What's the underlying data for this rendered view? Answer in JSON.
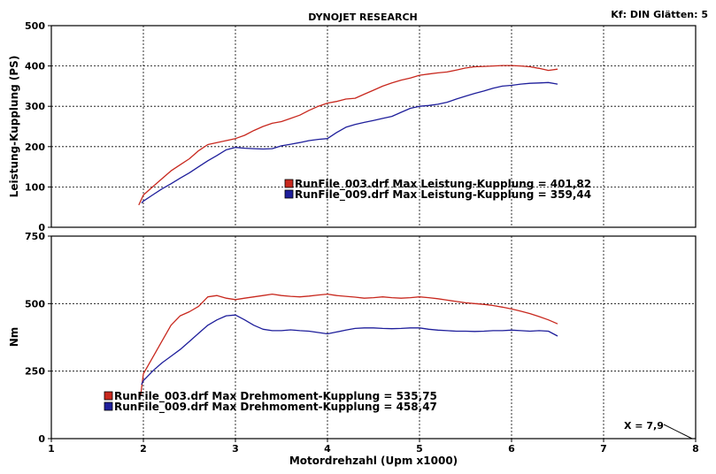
{
  "header": {
    "title": "DYNOJET RESEARCH",
    "correction": "Kf: DIN  Glätten: 5"
  },
  "cursor_readout": "X = 7,9",
  "colors": {
    "run_003": "#c8281e",
    "run_009": "#1e1e9b",
    "panel_bg": "#ffffff",
    "grid": "#000000"
  },
  "chart_data": [
    {
      "type": "line",
      "title": "",
      "xlabel": "",
      "ylabel": "Leistung-Kupplung (PS)",
      "xlim": [
        1,
        8
      ],
      "ylim": [
        0,
        500
      ],
      "xticks": [
        1,
        2,
        3,
        4,
        5,
        6,
        7,
        8
      ],
      "yticks": [
        0,
        100,
        200,
        300,
        400,
        500
      ],
      "grid": true,
      "legend_position": "center",
      "series": [
        {
          "name": "RunFile_003.drf Max Leistung-Kupplung = 401,82",
          "color": "#c8281e",
          "x": [
            1.95,
            2.0,
            2.1,
            2.2,
            2.3,
            2.4,
            2.5,
            2.6,
            2.7,
            2.8,
            2.9,
            3.0,
            3.1,
            3.2,
            3.3,
            3.4,
            3.5,
            3.6,
            3.7,
            3.8,
            3.9,
            4.0,
            4.1,
            4.2,
            4.3,
            4.4,
            4.5,
            4.6,
            4.7,
            4.8,
            4.9,
            5.0,
            5.1,
            5.2,
            5.3,
            5.4,
            5.5,
            5.6,
            5.7,
            5.8,
            5.9,
            6.0,
            6.1,
            6.2,
            6.3,
            6.4,
            6.5
          ],
          "y": [
            55,
            80,
            100,
            120,
            140,
            155,
            170,
            190,
            205,
            210,
            215,
            220,
            228,
            240,
            250,
            258,
            262,
            270,
            278,
            290,
            300,
            308,
            312,
            318,
            320,
            330,
            340,
            350,
            358,
            365,
            370,
            377,
            380,
            383,
            385,
            390,
            395,
            398,
            399,
            400,
            401,
            401,
            400,
            398,
            394,
            389,
            392
          ]
        },
        {
          "name": "RunFile_009.drf Max Leistung-Kupplung = 359,44",
          "color": "#1e1e9b",
          "x": [
            1.98,
            2.0,
            2.1,
            2.2,
            2.3,
            2.4,
            2.5,
            2.6,
            2.7,
            2.8,
            2.9,
            3.0,
            3.1,
            3.2,
            3.3,
            3.4,
            3.5,
            3.6,
            3.7,
            3.8,
            3.9,
            4.0,
            4.1,
            4.2,
            4.3,
            4.4,
            4.5,
            4.6,
            4.7,
            4.8,
            4.9,
            5.0,
            5.1,
            5.2,
            5.3,
            5.4,
            5.5,
            5.6,
            5.7,
            5.8,
            5.9,
            6.0,
            6.1,
            6.2,
            6.3,
            6.4,
            6.5
          ],
          "y": [
            60,
            65,
            80,
            95,
            108,
            122,
            135,
            150,
            165,
            178,
            192,
            198,
            196,
            195,
            194,
            195,
            202,
            206,
            210,
            215,
            218,
            220,
            235,
            248,
            255,
            260,
            265,
            270,
            275,
            285,
            295,
            300,
            302,
            305,
            310,
            318,
            325,
            332,
            338,
            345,
            350,
            352,
            355,
            357,
            358,
            359,
            355
          ]
        }
      ]
    },
    {
      "type": "line",
      "title": "",
      "xlabel": "Motordrehzahl (Upm x1000)",
      "ylabel": "Nm",
      "xlim": [
        1,
        8
      ],
      "ylim": [
        0,
        750
      ],
      "xticks": [
        1,
        2,
        3,
        4,
        5,
        6,
        7,
        8
      ],
      "yticks": [
        0,
        250,
        500,
        750
      ],
      "grid": true,
      "legend_position": "bottom-left",
      "series": [
        {
          "name": "RunFile_003.drf Max Drehmoment-Kupplung = 535,75",
          "color": "#c8281e",
          "x": [
            1.97,
            2.0,
            2.1,
            2.2,
            2.3,
            2.4,
            2.5,
            2.6,
            2.7,
            2.8,
            2.9,
            3.0,
            3.1,
            3.2,
            3.3,
            3.4,
            3.5,
            3.6,
            3.7,
            3.8,
            3.9,
            4.0,
            4.1,
            4.2,
            4.3,
            4.4,
            4.5,
            4.6,
            4.7,
            4.8,
            4.9,
            5.0,
            5.1,
            5.2,
            5.3,
            5.4,
            5.5,
            5.6,
            5.7,
            5.8,
            5.9,
            6.0,
            6.1,
            6.2,
            6.3,
            6.4,
            6.5
          ],
          "y": [
            160,
            240,
            300,
            360,
            420,
            455,
            470,
            490,
            525,
            530,
            520,
            515,
            520,
            525,
            530,
            535,
            530,
            527,
            525,
            528,
            532,
            535,
            530,
            527,
            524,
            520,
            522,
            525,
            522,
            520,
            522,
            525,
            522,
            518,
            513,
            508,
            503,
            500,
            497,
            493,
            487,
            480,
            472,
            463,
            452,
            440,
            425
          ]
        },
        {
          "name": "RunFile_009.drf Max Drehmoment-Kupplung = 458,47",
          "color": "#1e1e9b",
          "x": [
            1.98,
            2.0,
            2.1,
            2.2,
            2.3,
            2.4,
            2.5,
            2.6,
            2.7,
            2.8,
            2.9,
            3.0,
            3.1,
            3.2,
            3.3,
            3.4,
            3.5,
            3.6,
            3.7,
            3.8,
            3.9,
            4.0,
            4.1,
            4.2,
            4.3,
            4.4,
            4.5,
            4.6,
            4.7,
            4.8,
            4.9,
            5.0,
            5.1,
            5.2,
            5.3,
            5.4,
            5.5,
            5.6,
            5.7,
            5.8,
            5.9,
            6.0,
            6.1,
            6.2,
            6.3,
            6.4,
            6.5
          ],
          "y": [
            200,
            215,
            250,
            280,
            305,
            330,
            360,
            390,
            420,
            440,
            455,
            458,
            440,
            420,
            405,
            400,
            400,
            403,
            400,
            398,
            393,
            388,
            395,
            402,
            408,
            410,
            410,
            408,
            407,
            408,
            410,
            410,
            405,
            402,
            400,
            398,
            398,
            397,
            398,
            400,
            400,
            402,
            400,
            398,
            400,
            398,
            380
          ]
        }
      ]
    }
  ]
}
